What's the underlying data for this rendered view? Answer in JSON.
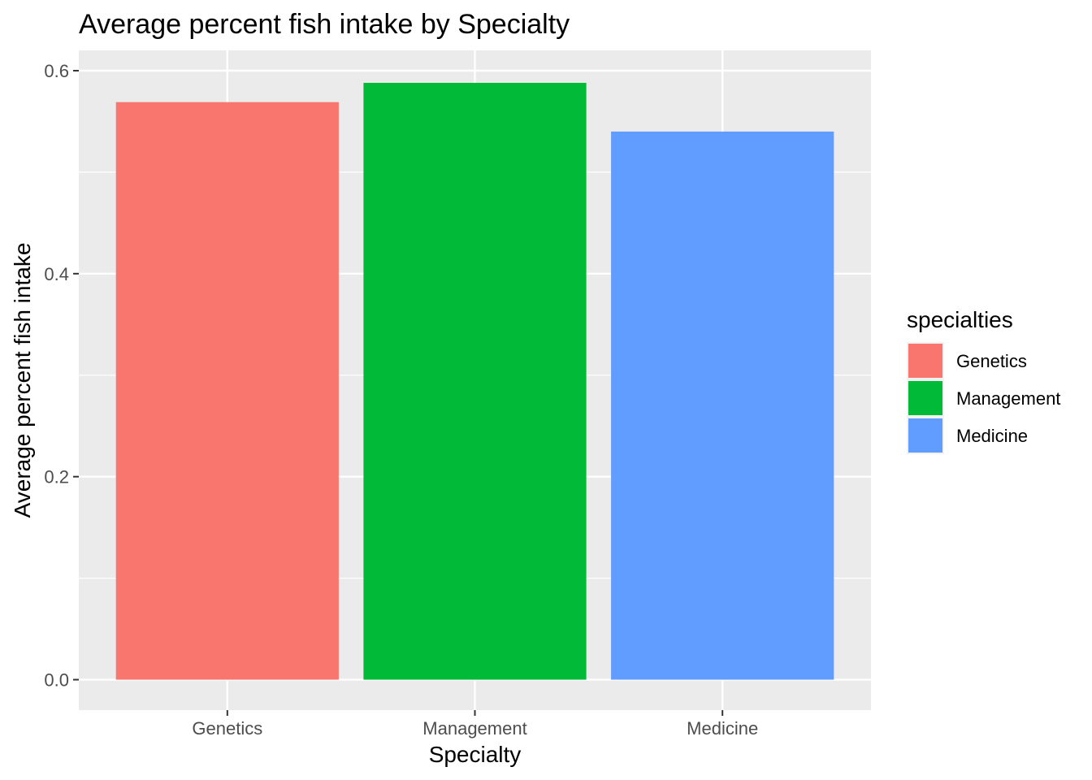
{
  "chart_data": {
    "type": "bar",
    "title": "Average percent fish intake by Specialty",
    "xlabel": "Specialty",
    "ylabel": "Average percent fish intake",
    "categories": [
      "Genetics",
      "Management",
      "Medicine"
    ],
    "values": [
      0.569,
      0.588,
      0.54
    ],
    "colors": [
      "#F8766D",
      "#00BA38",
      "#619CFF"
    ],
    "ylim": [
      -0.03,
      0.62
    ],
    "yticks": [
      0.0,
      0.2,
      0.4,
      0.6
    ],
    "ytick_labels": [
      "0.0",
      "0.2",
      "0.4",
      "0.6"
    ],
    "grid": true,
    "panel_background": "#EBEBEB",
    "legend": {
      "title": "specialties",
      "position": "right",
      "entries": [
        "Genetics",
        "Management",
        "Medicine"
      ]
    }
  }
}
